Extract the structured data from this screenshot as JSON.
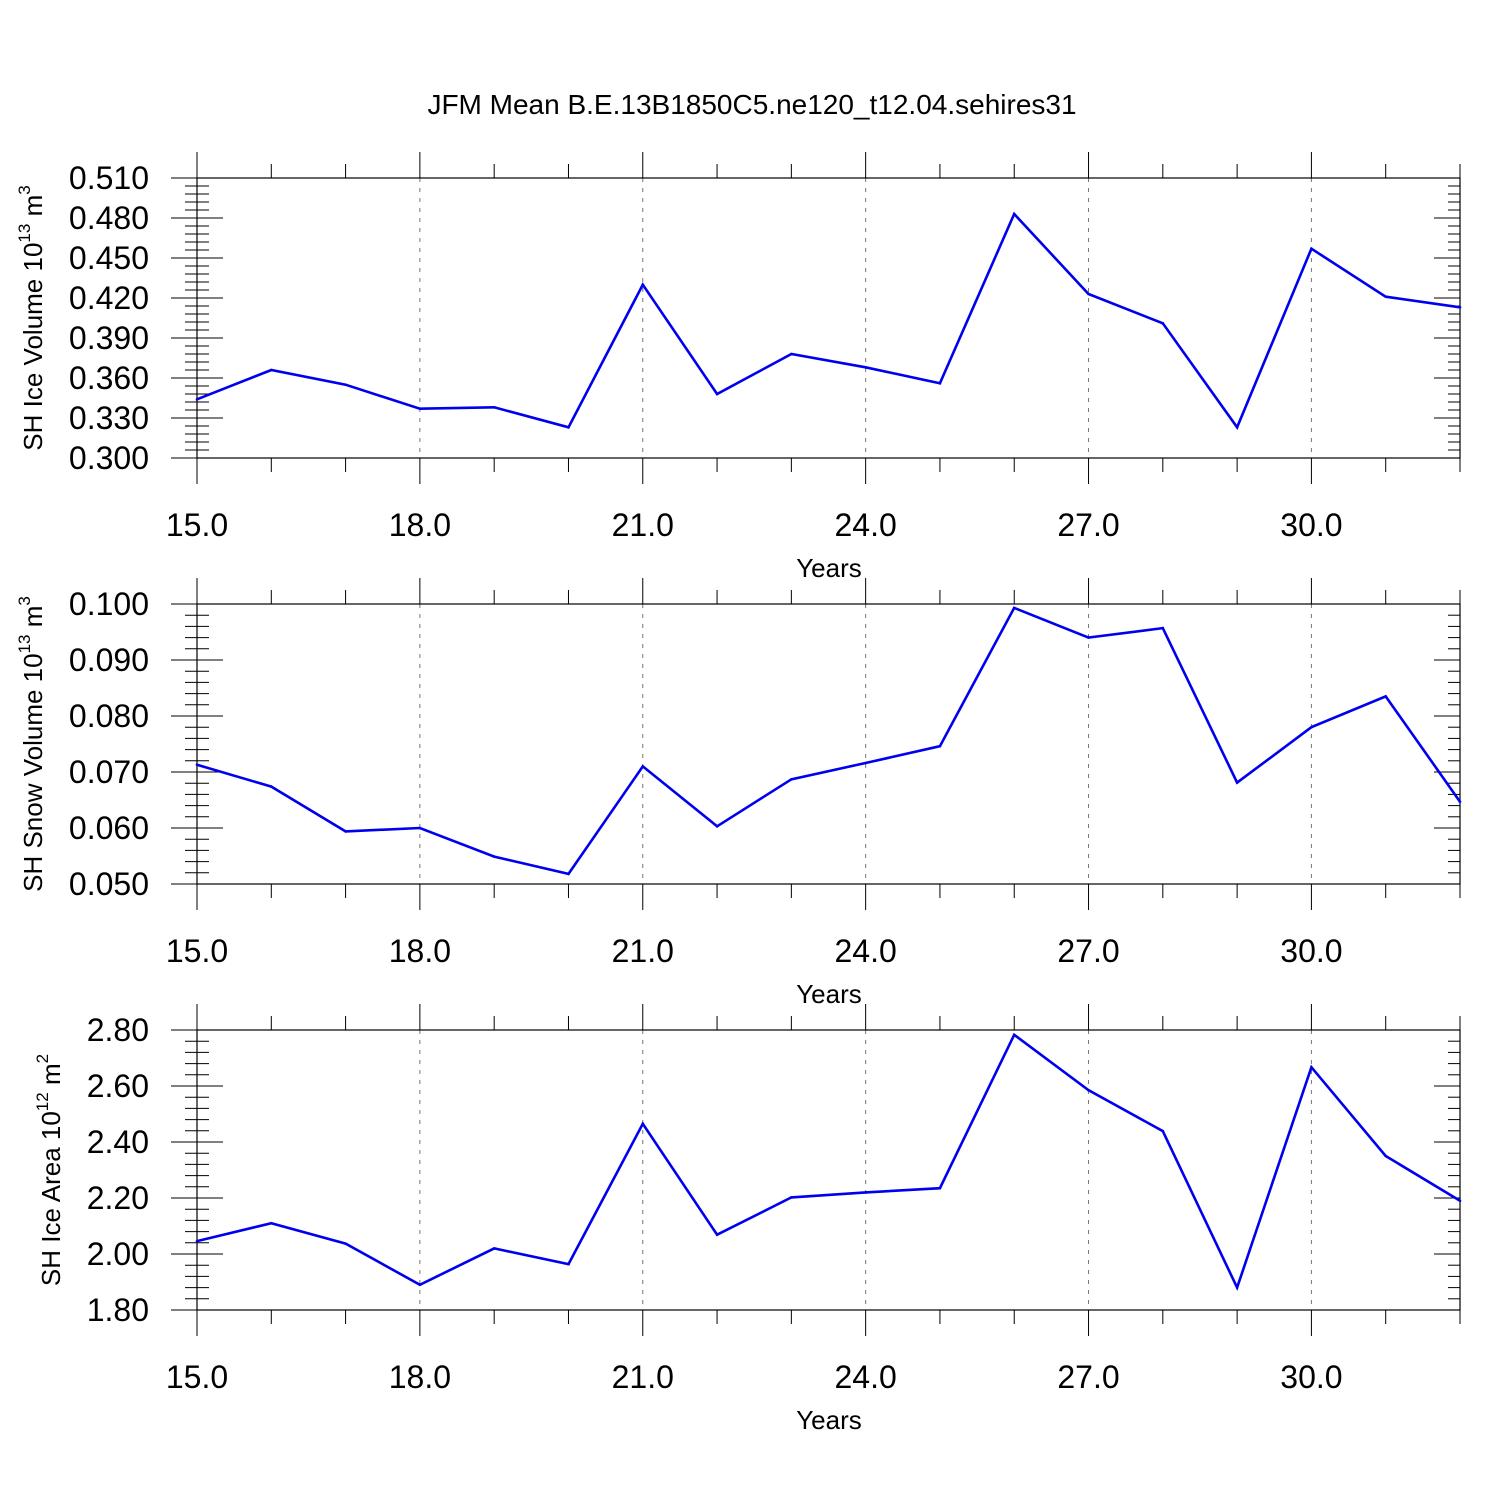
{
  "figure": {
    "title": "JFM Mean B.E.13B1850C5.ne120_t12.04.sehires31"
  },
  "chart_data": [
    {
      "type": "line",
      "title": "",
      "xlabel": "Years",
      "ylabel": "SH Ice Volume 10",
      "ylabel_exp": "13",
      "ylabel_unit": " m",
      "ylabel_unit_exp": "3",
      "xlim": [
        15,
        32
      ],
      "ylim": [
        0.3,
        0.51
      ],
      "xticks": [
        15,
        18,
        21,
        24,
        27,
        30
      ],
      "xtick_labels": [
        "15.0",
        "18.0",
        "21.0",
        "24.0",
        "27.0",
        "30.0"
      ],
      "yticks": [
        0.3,
        0.33,
        0.36,
        0.39,
        0.42,
        0.45,
        0.48,
        0.51
      ],
      "ytick_labels": [
        "0.300",
        "0.330",
        "0.360",
        "0.390",
        "0.420",
        "0.450",
        "0.480",
        "0.510"
      ],
      "grid": "vertical dashed at major x ticks",
      "color": "#0000ee",
      "x": [
        15,
        16,
        17,
        18,
        19,
        20,
        21,
        22,
        23,
        24,
        25,
        26,
        27,
        28,
        29,
        30,
        31,
        32
      ],
      "values": [
        0.344,
        0.366,
        0.355,
        0.337,
        0.338,
        0.323,
        0.43,
        0.348,
        0.378,
        0.368,
        0.356,
        0.483,
        0.423,
        0.401,
        0.323,
        0.457,
        0.421,
        0.413
      ]
    },
    {
      "type": "line",
      "title": "",
      "xlabel": "Years",
      "ylabel": "SH Snow Volume 10",
      "ylabel_exp": "13",
      "ylabel_unit": " m",
      "ylabel_unit_exp": "3",
      "xlim": [
        15,
        32
      ],
      "ylim": [
        0.05,
        0.1
      ],
      "xticks": [
        15,
        18,
        21,
        24,
        27,
        30
      ],
      "xtick_labels": [
        "15.0",
        "18.0",
        "21.0",
        "24.0",
        "27.0",
        "30.0"
      ],
      "yticks": [
        0.05,
        0.06,
        0.07,
        0.08,
        0.09,
        0.1
      ],
      "ytick_labels": [
        "0.050",
        "0.060",
        "0.070",
        "0.080",
        "0.090",
        "0.100"
      ],
      "grid": "vertical dashed at major x ticks",
      "color": "#0000ee",
      "x": [
        15,
        16,
        17,
        18,
        19,
        20,
        21,
        22,
        23,
        24,
        25,
        26,
        27,
        28,
        29,
        30,
        31,
        32
      ],
      "values": [
        0.0713,
        0.0674,
        0.0594,
        0.06,
        0.0549,
        0.0518,
        0.071,
        0.0603,
        0.0687,
        0.0716,
        0.0746,
        0.0993,
        0.094,
        0.0957,
        0.0681,
        0.078,
        0.0835,
        0.0647
      ]
    },
    {
      "type": "line",
      "title": "",
      "xlabel": "Years",
      "ylabel": "SH Ice Area 10",
      "ylabel_exp": "12",
      "ylabel_unit": " m",
      "ylabel_unit_exp": "2",
      "xlim": [
        15,
        32
      ],
      "ylim": [
        1.8,
        2.8
      ],
      "xticks": [
        15,
        18,
        21,
        24,
        27,
        30
      ],
      "xtick_labels": [
        "15.0",
        "18.0",
        "21.0",
        "24.0",
        "27.0",
        "30.0"
      ],
      "yticks": [
        1.8,
        2.0,
        2.2,
        2.4,
        2.6,
        2.8
      ],
      "ytick_labels": [
        "1.80",
        "2.00",
        "2.20",
        "2.40",
        "2.60",
        "2.80"
      ],
      "grid": "vertical dashed at major x ticks",
      "color": "#0000ee",
      "x": [
        15,
        16,
        17,
        18,
        19,
        20,
        21,
        22,
        23,
        24,
        25,
        26,
        27,
        28,
        29,
        30,
        31,
        32
      ],
      "values": [
        2.046,
        2.11,
        2.037,
        1.89,
        2.02,
        1.964,
        2.465,
        2.069,
        2.202,
        2.22,
        2.235,
        2.783,
        2.585,
        2.439,
        1.88,
        2.667,
        2.35,
        2.19
      ]
    }
  ]
}
